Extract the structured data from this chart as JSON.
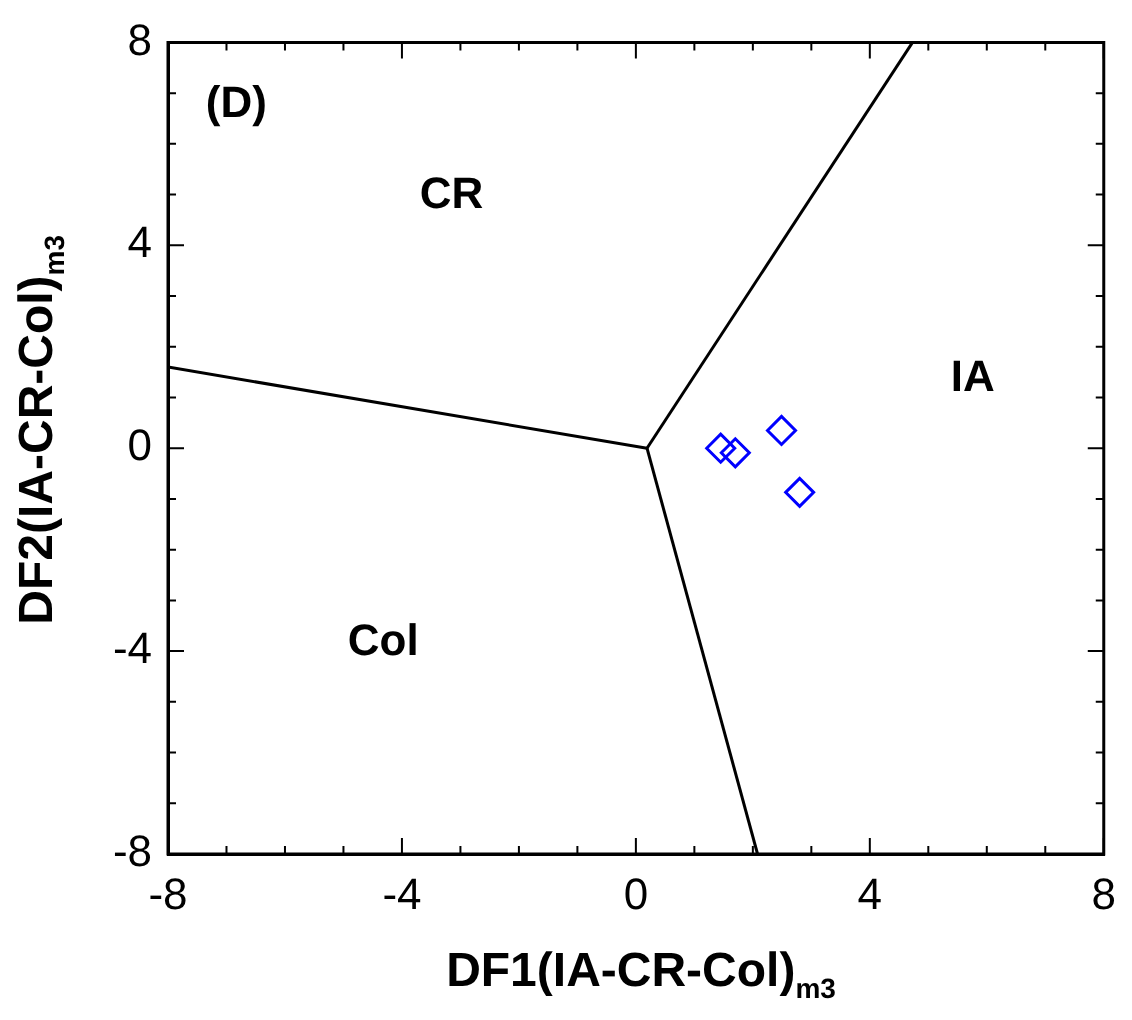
{
  "chart_data": {
    "type": "scatter",
    "xlabel": "DF1(IA-CR-Col)$_{m3}$",
    "ylabel": "DF2(IA-CR-Col)$_{m3}$",
    "xlim": [
      -8,
      8
    ],
    "ylim": [
      -8,
      8
    ],
    "xticks": [
      -8,
      {
        "value": -7,
        "label": null
      },
      {
        "value": -6,
        "label": null
      },
      {
        "value": -5,
        "label": null
      },
      -4,
      {
        "value": -3,
        "label": null
      },
      {
        "value": -2,
        "label": null
      },
      {
        "value": -1,
        "label": null
      },
      0,
      {
        "value": 1,
        "label": null
      },
      {
        "value": 2,
        "label": null
      },
      {
        "value": 3,
        "label": null
      },
      4,
      {
        "value": 5,
        "label": null
      },
      {
        "value": 6,
        "label": null
      },
      {
        "value": 7,
        "label": null
      },
      8
    ],
    "yticks": [
      -8,
      {
        "value": -7,
        "label": null
      },
      {
        "value": -6,
        "label": null
      },
      {
        "value": -5,
        "label": null
      },
      -4,
      {
        "value": -3,
        "label": null
      },
      {
        "value": -2,
        "label": null
      },
      {
        "value": -1,
        "label": null
      },
      0,
      {
        "value": 1,
        "label": null
      },
      {
        "value": 2,
        "label": null
      },
      {
        "value": 3,
        "label": null
      },
      4,
      {
        "value": 5,
        "label": null
      },
      {
        "value": 6,
        "label": null
      },
      {
        "value": 7,
        "label": null
      },
      8
    ],
    "grid": false,
    "marker": "diamond",
    "series": [
      {
        "color": "#0000ff",
        "x": [
          1.45,
          1.7,
          2.49,
          2.8
        ],
        "values": [
          0,
          -0.09,
          0.35,
          -0.87
        ]
      },
      {
        "type": "line",
        "color": "#000000",
        "marker": "none",
        "x": [
          -8,
          0.19
        ],
        "values": [
          1.6,
          0
        ]
      },
      {
        "type": "line",
        "color": "#000000",
        "marker": "none",
        "x": [
          0.19,
          4.73
        ],
        "values": [
          0,
          8
        ]
      },
      {
        "type": "line",
        "color": "#000000",
        "marker": "none",
        "x": [
          0.19,
          2.08
        ],
        "values": [
          0,
          -8
        ]
      }
    ],
    "annotations": [
      "(D)",
      "CR",
      "IA",
      "Col"
    ]
  }
}
